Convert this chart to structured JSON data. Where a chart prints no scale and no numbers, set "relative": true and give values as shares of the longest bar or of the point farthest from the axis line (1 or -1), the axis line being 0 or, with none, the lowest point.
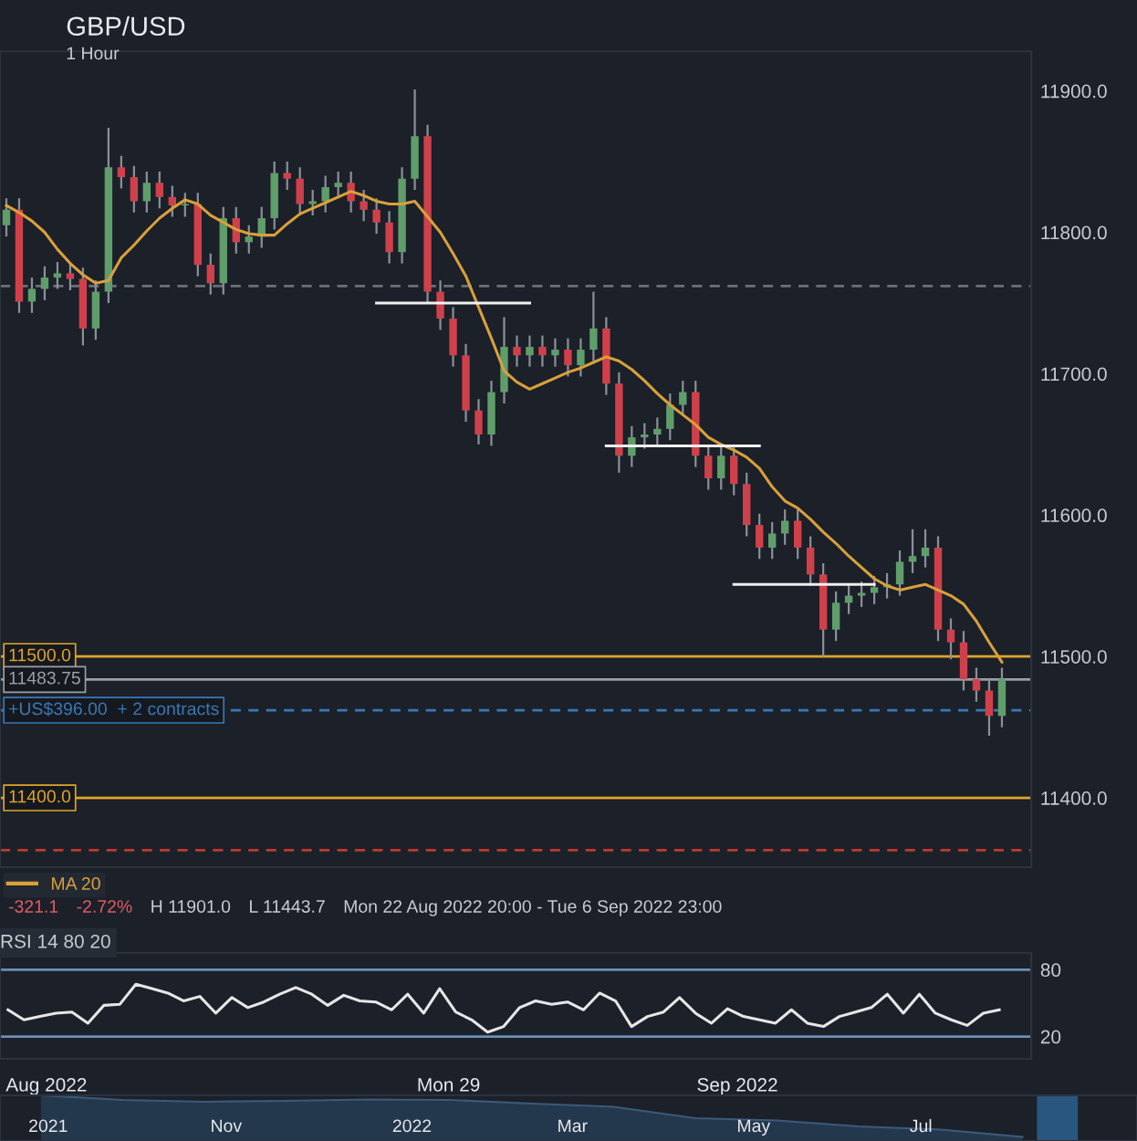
{
  "chart_data": [
    {
      "type": "candlestick",
      "title": "GBP/USD",
      "subtitle": "1 Hour",
      "categories": [
        null,
        null,
        null,
        null,
        null,
        null,
        null,
        null,
        null,
        null,
        null,
        null,
        null,
        null,
        null,
        null,
        null,
        null,
        null,
        null,
        null,
        null,
        null,
        null,
        null,
        null,
        null,
        null,
        null,
        null,
        null,
        null,
        null,
        null,
        null,
        null,
        null,
        null,
        null,
        null,
        null,
        null,
        null,
        null,
        null,
        null,
        null,
        null,
        null,
        null,
        null,
        null,
        null,
        null,
        null,
        null,
        null,
        null,
        null,
        null,
        null,
        null,
        null,
        null,
        null,
        null,
        null,
        null,
        null,
        null,
        null,
        null,
        null,
        null,
        null,
        null,
        null,
        null,
        null
      ],
      "ohlc": [
        [
          11805,
          11824,
          11797,
          11816
        ],
        [
          11816,
          11824,
          11743,
          11751
        ],
        [
          11751,
          11768,
          11743,
          11760
        ],
        [
          11760,
          11776,
          11752,
          11768
        ],
        [
          11768,
          11779,
          11760,
          11771
        ],
        [
          11771,
          11779,
          11759,
          11767
        ],
        [
          11767,
          11775,
          11720,
          11732
        ],
        [
          11732,
          11766,
          11724,
          11758
        ],
        [
          11758,
          11874,
          11750,
          11846
        ],
        [
          11846,
          11854,
          11831,
          11839
        ],
        [
          11839,
          11847,
          11814,
          11822
        ],
        [
          11822,
          11843,
          11814,
          11835
        ],
        [
          11835,
          11843,
          11817,
          11825
        ],
        [
          11825,
          11833,
          11811,
          11819
        ],
        [
          11819,
          11828,
          11811,
          11820
        ],
        [
          11820,
          11828,
          11769,
          11777
        ],
        [
          11777,
          11785,
          11756,
          11764
        ],
        [
          11764,
          11818,
          11756,
          11810
        ],
        [
          11810,
          11818,
          11785,
          11793
        ],
        [
          11793,
          11805,
          11785,
          11797
        ],
        [
          11797,
          11818,
          11789,
          11810
        ],
        [
          11810,
          11850,
          11802,
          11842
        ],
        [
          11842,
          11850,
          11830,
          11838
        ],
        [
          11838,
          11846,
          11812,
          11820
        ],
        [
          11820,
          11830,
          11812,
          11822
        ],
        [
          11822,
          11840,
          11814,
          11832
        ],
        [
          11832,
          11843,
          11824,
          11835
        ],
        [
          11835,
          11843,
          11814,
          11822
        ],
        [
          11822,
          11830,
          11808,
          11816
        ],
        [
          11816,
          11824,
          11799,
          11807
        ],
        [
          11807,
          11815,
          11778,
          11786
        ],
        [
          11786,
          11846,
          11778,
          11838
        ],
        [
          11838,
          11901,
          11830,
          11868
        ],
        [
          11868,
          11876,
          11750,
          11758
        ],
        [
          11758,
          11766,
          11731,
          11739
        ],
        [
          11739,
          11747,
          11705,
          11713
        ],
        [
          11713,
          11721,
          11666,
          11674
        ],
        [
          11674,
          11682,
          11650,
          11657
        ],
        [
          11657,
          11695,
          11649,
          11687
        ],
        [
          11687,
          11740,
          11679,
          11719
        ],
        [
          11719,
          11727,
          11705,
          11713
        ],
        [
          11713,
          11727,
          11705,
          11719
        ],
        [
          11719,
          11727,
          11705,
          11713
        ],
        [
          11713,
          11725,
          11705,
          11717
        ],
        [
          11717,
          11725,
          11698,
          11706
        ],
        [
          11706,
          11725,
          11698,
          11717
        ],
        [
          11717,
          11758,
          11709,
          11732
        ],
        [
          11732,
          11740,
          11685,
          11693
        ],
        [
          11693,
          11701,
          11630,
          11642
        ],
        [
          11642,
          11663,
          11634,
          11655
        ],
        [
          11655,
          11665,
          11647,
          11657
        ],
        [
          11657,
          11669,
          11649,
          11661
        ],
        [
          11661,
          11686,
          11653,
          11678
        ],
        [
          11678,
          11695,
          11670,
          11687
        ],
        [
          11687,
          11695,
          11634,
          11642
        ],
        [
          11642,
          11650,
          11618,
          11626
        ],
        [
          11626,
          11650,
          11618,
          11642
        ],
        [
          11642,
          11650,
          11614,
          11622
        ],
        [
          11622,
          11630,
          11585,
          11593
        ],
        [
          11593,
          11601,
          11569,
          11577
        ],
        [
          11577,
          11595,
          11569,
          11587
        ],
        [
          11587,
          11604,
          11579,
          11596
        ],
        [
          11596,
          11604,
          11569,
          11577
        ],
        [
          11577,
          11585,
          11550,
          11558
        ],
        [
          11558,
          11566,
          11500,
          11519
        ],
        [
          11519,
          11546,
          11511,
          11538
        ],
        [
          11538,
          11551,
          11530,
          11543
        ],
        [
          11543,
          11553,
          11535,
          11545
        ],
        [
          11545,
          11557,
          11537,
          11549
        ],
        [
          11549,
          11559,
          11541,
          11551
        ],
        [
          11551,
          11575,
          11543,
          11567
        ],
        [
          11567,
          11590,
          11559,
          11571
        ],
        [
          11571,
          11590,
          11563,
          11577
        ],
        [
          11577,
          11585,
          11511,
          11519
        ],
        [
          11519,
          11527,
          11498,
          11510
        ],
        [
          11510,
          11518,
          11476,
          11484
        ],
        [
          11484,
          11492,
          11468,
          11476
        ],
        [
          11476,
          11484,
          11444,
          11458
        ],
        [
          11458,
          11492,
          11450,
          11484
        ]
      ],
      "series": [
        {
          "name": "MA 20",
          "type": "line",
          "color": "#d9a03a",
          "values": [
            11819,
            11814,
            11808,
            11800,
            11788,
            11778,
            11770,
            11764,
            11766,
            11782,
            11791,
            11801,
            11810,
            11817,
            11823,
            11820,
            11812,
            11807,
            11802,
            11799,
            11798,
            11798,
            11806,
            11813,
            11817,
            11821,
            11825,
            11829,
            11826,
            11822,
            11820,
            11820,
            11822,
            11811,
            11800,
            11785,
            11769,
            11747,
            11725,
            11702,
            11694,
            11689,
            11693,
            11697,
            11701,
            11704,
            11708,
            11712,
            11709,
            11703,
            11695,
            11686,
            11678,
            11671,
            11664,
            11655,
            11650,
            11646,
            11641,
            11633,
            11620,
            11610,
            11605,
            11597,
            11588,
            11580,
            11571,
            11563,
            11555,
            11550,
            11547,
            11549,
            11551,
            11547,
            11543,
            11537,
            11525,
            11510,
            11496
          ]
        },
        {
          "type": "line",
          "color": "#f0f0f0",
          "values": [
            null,
            null,
            null,
            null,
            null,
            null,
            null,
            null,
            null,
            null,
            null,
            null,
            null,
            null,
            null,
            null,
            null,
            null,
            null,
            null,
            null,
            null,
            null,
            null,
            null,
            null,
            null,
            null,
            null,
            11750,
            11750,
            11750,
            11750,
            11750,
            11750,
            11750,
            11750,
            11750,
            11750,
            11750,
            11750,
            11750,
            null,
            null,
            null,
            null,
            null,
            null,
            null,
            null,
            null,
            null,
            null,
            null,
            null,
            null,
            null,
            null,
            null,
            null,
            null,
            null,
            null,
            null,
            null,
            null,
            null,
            null,
            null,
            null,
            null,
            null,
            null,
            null,
            null,
            null,
            null,
            null,
            null
          ]
        },
        {
          "type": "line",
          "color": "#f0f0f0",
          "values": [
            null,
            null,
            null,
            null,
            null,
            null,
            null,
            null,
            null,
            null,
            null,
            null,
            null,
            null,
            null,
            null,
            null,
            null,
            null,
            null,
            null,
            null,
            null,
            null,
            null,
            null,
            null,
            null,
            null,
            null,
            null,
            null,
            null,
            null,
            null,
            null,
            null,
            null,
            null,
            null,
            null,
            null,
            null,
            null,
            null,
            null,
            null,
            11649,
            11649,
            11649,
            11649,
            11649,
            11649,
            11649,
            11649,
            11649,
            11649,
            11649,
            11649,
            11649,
            null,
            null,
            null,
            null,
            null,
            null,
            null,
            null,
            null,
            null,
            null,
            null,
            null,
            null,
            null,
            null,
            null,
            null,
            null
          ]
        },
        {
          "type": "line",
          "color": "#f0f0f0",
          "values": [
            null,
            null,
            null,
            null,
            null,
            null,
            null,
            null,
            null,
            null,
            null,
            null,
            null,
            null,
            null,
            null,
            null,
            null,
            null,
            null,
            null,
            null,
            null,
            null,
            null,
            null,
            null,
            null,
            null,
            null,
            null,
            null,
            null,
            null,
            null,
            null,
            null,
            null,
            null,
            null,
            null,
            null,
            null,
            null,
            null,
            null,
            null,
            null,
            null,
            null,
            null,
            null,
            null,
            null,
            null,
            null,
            null,
            11551,
            11551,
            11551,
            11551,
            11551,
            11551,
            11551,
            11551,
            11551,
            11551,
            11551,
            11551,
            null,
            null,
            null,
            null,
            null,
            null,
            null,
            null,
            null,
            null
          ]
        }
      ],
      "ylim": [
        11351,
        11928
      ],
      "yticks": [
        {
          "value": 11400,
          "label": "11400.0"
        },
        {
          "value": 11500,
          "label": "11500.0"
        },
        {
          "value": 11600,
          "label": "11600.0"
        },
        {
          "value": 11700,
          "label": "11700.0"
        },
        {
          "value": 11800,
          "label": "11800.0"
        },
        {
          "value": 11900,
          "label": "11900.0"
        }
      ],
      "tick_labels": "y",
      "legend": "bottom left",
      "ref_lines": [
        {
          "axis": "y",
          "value": 11500,
          "label": "11500.0",
          "color": "#e0a528",
          "line_style": "solid"
        },
        {
          "axis": "y",
          "value": 11400,
          "label": "11400.0",
          "color": "#e0a528",
          "line_style": "solid"
        },
        {
          "axis": "y",
          "value": 11762,
          "color": "#6a6f78",
          "line_style": "dashed"
        },
        {
          "axis": "y",
          "value": 11483.75,
          "label": "11483.75",
          "color": "#9a9ea6",
          "line_style": "solid"
        },
        {
          "axis": "y",
          "value": 11462,
          "label": "+US$396.00  + 2 contracts",
          "color": "#3a78b5",
          "line_style": "dashed"
        },
        {
          "axis": "y",
          "value": 11363,
          "color": "#c0392b",
          "line_style": "dashed"
        }
      ],
      "annotations": [
        "-321.1",
        "-2.72%",
        "H 11901.0",
        "L 11443.7",
        "Mon 22 Aug 2022 20:00 - Tue 6 Sep 2022 23:00"
      ]
    },
    {
      "type": "line",
      "title": "RSI 14 80 20",
      "categories": [
        null,
        null,
        null,
        null,
        null,
        null,
        null,
        null,
        null,
        null,
        null,
        null,
        null,
        null,
        null,
        null,
        null,
        null,
        null,
        null,
        null,
        null,
        null,
        null,
        null,
        null,
        null,
        null,
        null,
        null,
        null,
        null,
        null,
        null,
        null,
        null,
        null,
        null,
        null,
        null,
        null,
        null,
        null,
        null,
        null,
        null,
        null,
        null,
        null,
        null,
        null,
        null,
        null,
        null,
        null,
        null,
        null,
        null,
        null,
        null,
        null,
        null,
        null
      ],
      "series": [
        {
          "color": "#e6e6e6",
          "values": [
            44,
            35,
            38,
            41,
            42,
            32,
            48,
            49,
            67,
            63,
            59,
            52,
            56,
            41,
            55,
            46,
            51,
            58,
            64,
            58,
            48,
            57,
            52,
            51,
            44,
            58,
            41,
            63,
            42,
            35,
            24,
            29,
            46,
            52,
            49,
            51,
            44,
            59,
            52,
            29,
            38,
            42,
            55,
            41,
            32,
            45,
            38,
            35,
            32,
            44,
            32,
            29,
            38,
            42,
            46,
            58,
            41,
            58,
            41,
            35,
            30,
            41,
            44
          ]
        }
      ],
      "ylim": [
        0,
        95
      ],
      "yticks": [
        20,
        80
      ],
      "tick_labels": "y",
      "ref_lines": [
        {
          "axis": "y",
          "value": 80,
          "color": "#6b8fb5"
        },
        {
          "axis": "y",
          "value": 20,
          "color": "#6b8fb5"
        }
      ],
      "annotations": [
        "Aug 2022",
        "Mon 29",
        "Sep 2022"
      ]
    },
    {
      "type": "area",
      "relative": true,
      "categories": [
        null,
        null,
        null,
        null,
        null,
        null,
        null,
        null,
        null,
        null,
        null,
        null,
        null
      ],
      "series": [
        {
          "color": "#24384d",
          "values": [
            1.0,
            0.9,
            0.86,
            0.88,
            0.91,
            0.9,
            0.82,
            0.75,
            0.5,
            0.45,
            0.32,
            0.25,
            0.09
          ]
        }
      ],
      "tick_labels": false,
      "annotations": [
        "2021",
        "Nov",
        "2022",
        "Mar",
        "May",
        "Jul"
      ]
    }
  ]
}
